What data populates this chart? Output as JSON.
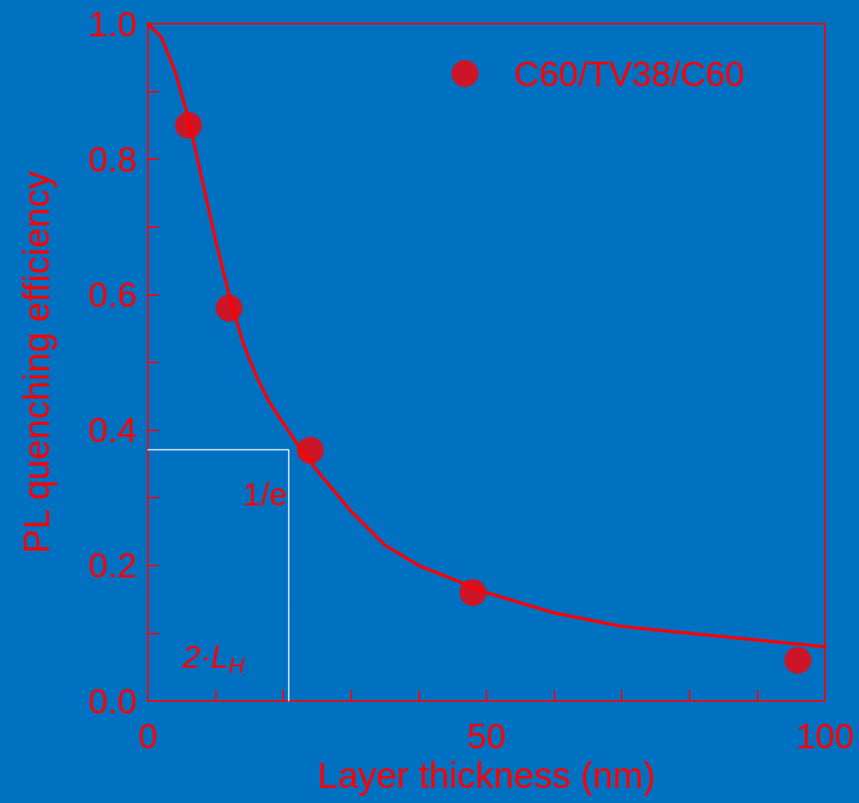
{
  "chart_data": {
    "type": "scatter",
    "xlabel": "Layer thickness (nm)",
    "ylabel": "PL quenching efficiency",
    "xlim": [
      0,
      100
    ],
    "xticks": [
      0,
      {
        "value": 10,
        "label": null
      },
      {
        "value": 20,
        "label": null
      },
      {
        "value": 30,
        "label": null
      },
      {
        "value": 40,
        "label": null
      },
      50,
      {
        "value": 60,
        "label": null
      },
      {
        "value": 70,
        "label": null
      },
      {
        "value": 80,
        "label": null
      },
      {
        "value": 90,
        "label": null
      },
      100
    ],
    "ylim": [
      0,
      1
    ],
    "yticks": [
      {
        "value": 0,
        "label": "0.0"
      },
      {
        "value": 0.1,
        "label": null
      },
      {
        "value": 0.2,
        "label": "0.2"
      },
      {
        "value": 0.3,
        "label": null
      },
      {
        "value": 0.4,
        "label": "0.4"
      },
      {
        "value": 0.5,
        "label": null
      },
      {
        "value": 0.6,
        "label": "0.6"
      },
      {
        "value": 0.7,
        "label": null
      },
      {
        "value": 0.8,
        "label": "0.8"
      },
      {
        "value": 0.9,
        "label": null
      },
      {
        "value": 1,
        "label": "1.0"
      }
    ],
    "series": [
      {
        "name": "C60/TV38/C60",
        "color": "#ff0000",
        "x": [
          6,
          12,
          24,
          48,
          96
        ],
        "values": [
          0.85,
          0.58,
          0.37,
          0.16,
          0.06
        ]
      },
      {
        "type": "line",
        "marker": "none",
        "color": "#ff0000",
        "x": [
          0,
          2,
          4,
          6,
          8,
          10,
          12,
          14,
          16,
          18,
          20,
          22,
          25,
          30,
          35,
          40,
          45,
          50,
          60,
          70,
          80,
          90,
          100
        ],
        "values": [
          1.0,
          0.98,
          0.93,
          0.86,
          0.77,
          0.68,
          0.6,
          0.53,
          0.48,
          0.44,
          0.41,
          0.38,
          0.34,
          0.28,
          0.23,
          0.2,
          0.18,
          0.16,
          0.13,
          0.11,
          0.1,
          0.09,
          0.08
        ]
      },
      {
        "type": "line",
        "marker": "none",
        "color": "#ffffff",
        "x": [
          0,
          20.8,
          20.8
        ],
        "values": [
          0.371,
          0.371,
          0
        ]
      }
    ],
    "annotations": [
      "1/e",
      "2·L$_{H}$"
    ],
    "legend": "top right",
    "marker": "circle",
    "line_style": "solid",
    "grid": false
  }
}
